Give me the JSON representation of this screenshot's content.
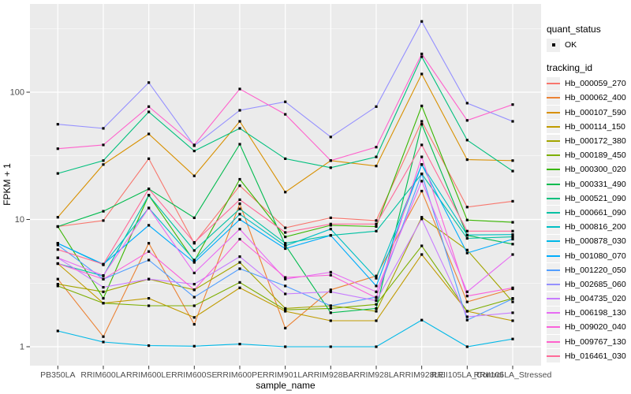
{
  "figure": {
    "y_axis_title": "FPKM + 1",
    "x_axis_title": "sample_name"
  },
  "legend": {
    "quant_title": "quant_status",
    "quant_items": [
      {
        "label": "OK",
        "marker": "black-square-point"
      }
    ],
    "tracking_title": "tracking_id"
  },
  "colors": {
    "panel_bg": "#EBEBEB",
    "grid": "#FFFFFF",
    "tick_text": "#4D4D4D",
    "tick_mark": "#333333",
    "axis_title": "#000000",
    "point_marker": "#000000",
    "legend_key_bg": "#EFEFEF"
  },
  "chart_data": {
    "type": "line",
    "title": "",
    "xlabel": "sample_name",
    "ylabel": "FPKM + 1",
    "y_scale": "log10",
    "ylim": [
      1,
      400
    ],
    "yticks": [
      1,
      10,
      100
    ],
    "grid": "ggplot-grey-panel-white-gridlines",
    "legend_position": "right",
    "point_marker": "filled-black-square",
    "categories": [
      "PB350LA",
      "RRIM600LA",
      "RRIM600LE",
      "RRIM600SE",
      "RRIM600PE",
      "RRIM901LA",
      "RRIM928BA",
      "RRIM928LA",
      "RRIM928LE",
      "RRII105LA_Control",
      "RRII105LA_Stressed"
    ],
    "series": [
      {
        "name": "Hb_000059_270",
        "color": "#F8766D",
        "values": [
          8.8,
          9.8,
          30,
          6.5,
          18.4,
          8.6,
          10.3,
          9.8,
          59,
          12.5,
          13.9
        ]
      },
      {
        "name": "Hb_000062_400",
        "color": "#EB8335",
        "values": [
          3.4,
          1.2,
          6.5,
          1.5,
          13.3,
          1.4,
          2.8,
          3.6,
          16.7,
          2.25,
          2.85
        ]
      },
      {
        "name": "Hb_000107_590",
        "color": "#D89000",
        "values": [
          10.4,
          27,
          47,
          22,
          59,
          16.4,
          29,
          26.3,
          139,
          29.5,
          29
        ]
      },
      {
        "name": "Hb_000114_150",
        "color": "#C09B00",
        "values": [
          4.5,
          2.2,
          2.4,
          1.7,
          2.9,
          1.9,
          1.6,
          1.6,
          5.3,
          1.9,
          1.6
        ]
      },
      {
        "name": "Hb_000172_380",
        "color": "#A3A500",
        "values": [
          3.1,
          2.7,
          3.4,
          2.8,
          4.6,
          2.0,
          2.1,
          1.9,
          10.4,
          5.75,
          2.25
        ]
      },
      {
        "name": "Hb_000189_450",
        "color": "#7CAE00",
        "values": [
          3.0,
          2.2,
          2.1,
          2.1,
          3.2,
          1.95,
          2.0,
          2.15,
          6.2,
          1.9,
          2.4
        ]
      },
      {
        "name": "Hb_000300_020",
        "color": "#39B600",
        "values": [
          8.8,
          2.4,
          15.5,
          4.7,
          20.7,
          7.3,
          9.0,
          8.8,
          78,
          9.9,
          9.5
        ]
      },
      {
        "name": "Hb_000331_490",
        "color": "#00BB4E",
        "values": [
          8.8,
          11.6,
          17.4,
          10.3,
          39,
          6.3,
          1.85,
          2.0,
          56,
          7.5,
          6.4
        ]
      },
      {
        "name": "Hb_000521_090",
        "color": "#00BF7D",
        "values": [
          23,
          29,
          70,
          34.5,
          52,
          30,
          25.5,
          31,
          190,
          42,
          24
        ]
      },
      {
        "name": "Hb_000661_090",
        "color": "#00C1A3",
        "values": [
          4.5,
          3.6,
          15.5,
          5.7,
          12.1,
          6.5,
          7.5,
          8.1,
          22.8,
          7.1,
          7.3
        ]
      },
      {
        "name": "Hb_000816_200",
        "color": "#00BFC4",
        "values": [
          6.5,
          4.4,
          12.3,
          4.8,
          11.0,
          6.2,
          8.4,
          3.45,
          27,
          7.55,
          7.6
        ]
      },
      {
        "name": "Hb_000878_030",
        "color": "#00B8E7",
        "values": [
          1.33,
          1.09,
          1.02,
          1.01,
          1.05,
          1.0,
          1.0,
          1.0,
          1.62,
          1.0,
          1.15
        ]
      },
      {
        "name": "Hb_001080_070",
        "color": "#00ACFC",
        "values": [
          6.5,
          4.45,
          9.0,
          4.6,
          10.0,
          5.9,
          7.5,
          3.0,
          27,
          5.45,
          7.0
        ]
      },
      {
        "name": "Hb_001220_050",
        "color": "#529EFF",
        "values": [
          6.3,
          3.4,
          4.8,
          2.45,
          4.1,
          3.0,
          2.1,
          2.45,
          22.8,
          1.62,
          2.38
        ]
      },
      {
        "name": "Hb_002685_060",
        "color": "#9590FF",
        "values": [
          56,
          52,
          119,
          38,
          72,
          84,
          44.5,
          77,
          360,
          82,
          59
        ]
      },
      {
        "name": "Hb_004735_020",
        "color": "#C77CFF",
        "values": [
          5.0,
          2.93,
          3.4,
          3.1,
          5.1,
          2.6,
          2.7,
          2.3,
          10.1,
          1.72,
          1.85
        ]
      },
      {
        "name": "Hb_006198_130",
        "color": "#E76BF3",
        "values": [
          5.0,
          3.63,
          12.3,
          3.8,
          8.4,
          3.4,
          3.85,
          2.7,
          20,
          2.7,
          5.3
        ]
      },
      {
        "name": "Hb_009020_040",
        "color": "#FA62DB",
        "values": [
          4.5,
          3.4,
          5.6,
          2.8,
          7.0,
          3.5,
          3.65,
          2.42,
          31,
          2.5,
          2.9
        ]
      },
      {
        "name": "Hb_009767_130",
        "color": "#FF61CC",
        "values": [
          36,
          38.5,
          77,
          38.5,
          106,
          67,
          29,
          37,
          200,
          60,
          80
        ]
      },
      {
        "name": "Hb_016461_030",
        "color": "#FF6A98",
        "values": [
          5.8,
          4.45,
          17.4,
          6.6,
          14.3,
          7.9,
          9.2,
          9.2,
          38.5,
          8.1,
          8.1
        ]
      }
    ]
  }
}
